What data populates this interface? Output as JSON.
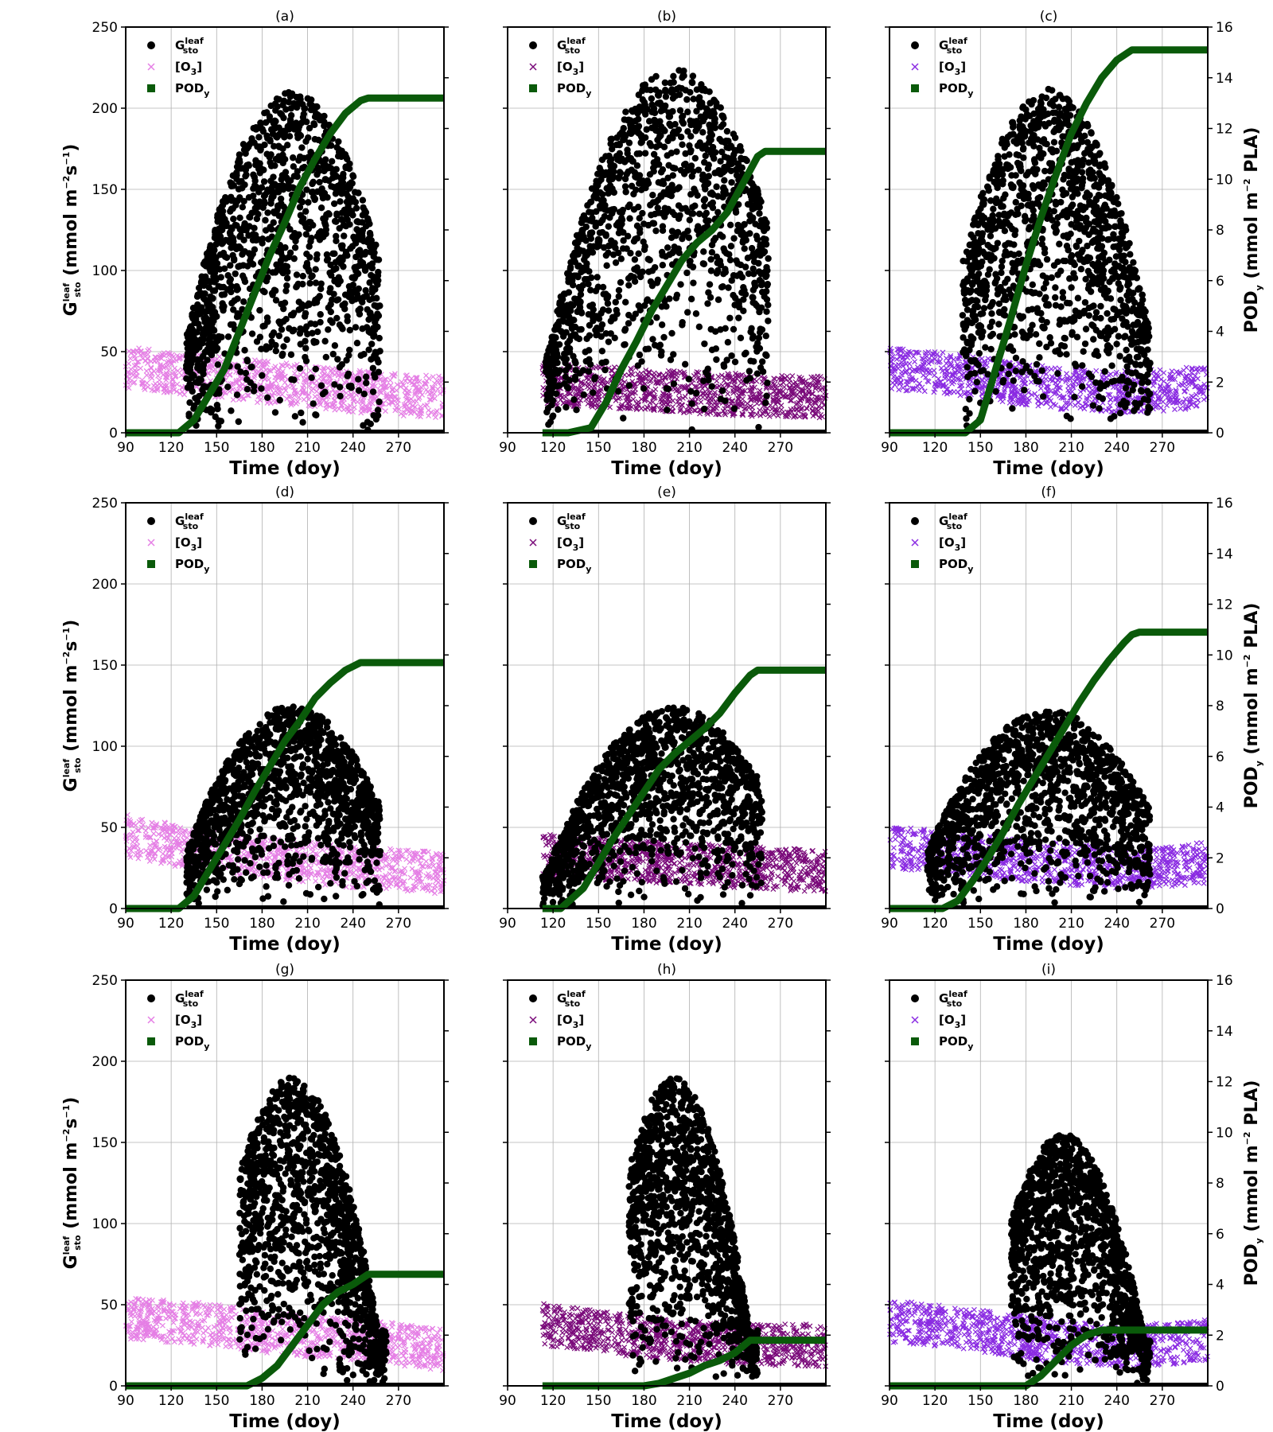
{
  "chart_data": {
    "type": "scatter",
    "legend_placement": "upper-left",
    "grid": true,
    "xlabel": "Time (doy)",
    "ylabel_left": {
      "base": "G",
      "sup": "leaf",
      "sub": "sto",
      "unit": " (mmol m",
      "unit_sup1": "−2",
      "unit_mid": "s",
      "unit_sup2": "−1",
      "unit_end": ")"
    },
    "ylabel_right": {
      "base": "POD",
      "sub": "y",
      "unit": " (mmol m",
      "unit_sup": "−2",
      "unit_end": " PLA)"
    },
    "xlim": [
      90,
      300
    ],
    "ylim_left": [
      0,
      250
    ],
    "ylim_right": [
      0,
      16
    ],
    "x_ticks": [
      90,
      120,
      150,
      180,
      210,
      240,
      270
    ],
    "y_ticks_left": [
      0,
      50,
      100,
      150,
      200,
      250
    ],
    "y_ticks_right": [
      0,
      2,
      4,
      6,
      8,
      10,
      12,
      14,
      16
    ],
    "legend": [
      {
        "key": "gsto",
        "base": "G",
        "sup": "leaf",
        "sub": "sto",
        "marker": "circle"
      },
      {
        "key": "o3",
        "base": "[O",
        "sub": "3",
        "end": "]",
        "marker": "x"
      },
      {
        "key": "pod",
        "base": "POD",
        "sub": "y",
        "marker": "square"
      }
    ],
    "colors": {
      "gsto": "#000000",
      "pod": "#0a5a0a",
      "o3_col1": "#e57fe5",
      "o3_col2": "#7a0a7a",
      "o3_col3": "#8a2be2"
    },
    "panels": [
      {
        "title": "(a)",
        "o3_color": "#e57fe5",
        "gsto": {
          "x_start": 130,
          "x_end": 258,
          "peak": 210,
          "peak_doy": 200
        },
        "o3": {
          "x_start": 90,
          "x_end": 300,
          "level": [
            40,
            35,
            30,
            25,
            22
          ]
        },
        "pod": {
          "x": [
            90,
            125,
            135,
            145,
            155,
            165,
            175,
            185,
            195,
            205,
            215,
            225,
            235,
            245,
            250,
            255,
            300
          ],
          "y": [
            0,
            0,
            0.5,
            1.5,
            2.5,
            4,
            5.5,
            7,
            8.3,
            9.7,
            10.8,
            11.8,
            12.6,
            13.1,
            13.2,
            13.2,
            13.2
          ]
        }
      },
      {
        "title": "(b)",
        "o3_color": "#7a0a7a",
        "gsto": {
          "x_start": 115,
          "x_end": 262,
          "peak": 225,
          "peak_doy": 200
        },
        "o3": {
          "x_start": 113,
          "x_end": 300,
          "level": [
            30,
            28,
            25,
            23,
            22
          ]
        },
        "pod": {
          "x": [
            113,
            130,
            145,
            155,
            165,
            175,
            185,
            195,
            205,
            215,
            225,
            235,
            245,
            255,
            260,
            300
          ],
          "y": [
            0,
            0,
            0.2,
            1.2,
            2.5,
            3.6,
            4.8,
            5.8,
            6.8,
            7.5,
            8.0,
            8.7,
            9.8,
            10.9,
            11.1,
            11.1
          ]
        }
      },
      {
        "title": "(c)",
        "o3_color": "#8a2be2",
        "gsto": {
          "x_start": 138,
          "x_end": 262,
          "peak": 212,
          "peak_doy": 195
        },
        "o3": {
          "x_start": 90,
          "x_end": 300,
          "level": [
            40,
            35,
            28,
            25,
            28
          ]
        },
        "pod": {
          "x": [
            90,
            140,
            150,
            160,
            170,
            180,
            190,
            200,
            210,
            220,
            230,
            240,
            250,
            255,
            300
          ],
          "y": [
            0,
            0,
            0.5,
            2.5,
            4.5,
            6.6,
            8.5,
            10.2,
            11.8,
            13.0,
            14.0,
            14.7,
            15.1,
            15.1,
            15.1
          ]
        }
      },
      {
        "title": "(d)",
        "o3_color": "#e57fe5",
        "gsto": {
          "x_start": 130,
          "x_end": 258,
          "peak": 125,
          "peak_doy": 200
        },
        "o3": {
          "x_start": 90,
          "x_end": 300,
          "level": [
            45,
            35,
            30,
            25,
            22
          ]
        },
        "pod": {
          "x": [
            90,
            125,
            135,
            145,
            155,
            165,
            175,
            185,
            195,
            205,
            215,
            225,
            235,
            245,
            250,
            255,
            300
          ],
          "y": [
            0,
            0,
            0.5,
            1.5,
            2.5,
            3.5,
            4.6,
            5.6,
            6.6,
            7.4,
            8.3,
            8.9,
            9.4,
            9.7,
            9.7,
            9.7,
            9.7
          ]
        }
      },
      {
        "title": "(e)",
        "o3_color": "#7a0a7a",
        "gsto": {
          "x_start": 113,
          "x_end": 258,
          "peak": 124,
          "peak_doy": 200
        },
        "o3": {
          "x_start": 113,
          "x_end": 300,
          "level": [
            33,
            30,
            28,
            25,
            23
          ]
        },
        "pod": {
          "x": [
            113,
            125,
            140,
            150,
            160,
            170,
            180,
            190,
            200,
            210,
            220,
            230,
            240,
            250,
            255,
            300
          ],
          "y": [
            0,
            0,
            0.8,
            1.8,
            2.8,
            3.7,
            4.6,
            5.5,
            6.1,
            6.6,
            7.1,
            7.7,
            8.5,
            9.2,
            9.4,
            9.4
          ]
        }
      },
      {
        "title": "(f)",
        "o3_color": "#8a2be2",
        "gsto": {
          "x_start": 115,
          "x_end": 262,
          "peak": 122,
          "peak_doy": 195
        },
        "o3": {
          "x_start": 90,
          "x_end": 300,
          "level": [
            38,
            33,
            28,
            25,
            28
          ]
        },
        "pod": {
          "x": [
            90,
            125,
            135,
            145,
            155,
            165,
            175,
            185,
            195,
            205,
            215,
            225,
            235,
            245,
            250,
            255,
            300
          ],
          "y": [
            0,
            0,
            0.3,
            1.1,
            2.0,
            3.0,
            4.1,
            5.1,
            6.1,
            7.1,
            8.1,
            9.0,
            9.8,
            10.5,
            10.8,
            10.9,
            10.9
          ]
        }
      },
      {
        "title": "(g)",
        "o3_color": "#e57fe5",
        "gsto": {
          "x_start": 165,
          "x_end": 262,
          "peak": 190,
          "peak_doy": 200
        },
        "o3": {
          "x_start": 90,
          "x_end": 300,
          "level": [
            42,
            38,
            32,
            28,
            22
          ]
        },
        "pod": {
          "x": [
            90,
            170,
            180,
            190,
            200,
            210,
            220,
            230,
            240,
            250,
            255,
            300
          ],
          "y": [
            0,
            0,
            0.3,
            0.8,
            1.6,
            2.4,
            3.2,
            3.7,
            4.0,
            4.4,
            4.4,
            4.4
          ]
        }
      },
      {
        "title": "(h)",
        "o3_color": "#7a0a7a",
        "gsto": {
          "x_start": 170,
          "x_end": 255,
          "peak": 190,
          "peak_doy": 200
        },
        "o3": {
          "x_start": 113,
          "x_end": 300,
          "level": [
            38,
            32,
            28,
            25,
            25
          ]
        },
        "pod": {
          "x": [
            113,
            180,
            190,
            200,
            210,
            220,
            230,
            240,
            250,
            260,
            300
          ],
          "y": [
            0,
            0,
            0.1,
            0.3,
            0.5,
            0.8,
            1.0,
            1.3,
            1.8,
            1.8,
            1.8
          ]
        }
      },
      {
        "title": "(i)",
        "o3_color": "#8a2be2",
        "gsto": {
          "x_start": 170,
          "x_end": 262,
          "peak": 155,
          "peak_doy": 205
        },
        "o3": {
          "x_start": 90,
          "x_end": 300,
          "level": [
            40,
            35,
            28,
            24,
            28
          ]
        },
        "pod": {
          "x": [
            90,
            180,
            190,
            200,
            210,
            220,
            230,
            240,
            250,
            300
          ],
          "y": [
            0,
            0,
            0.4,
            1.0,
            1.6,
            2.0,
            2.2,
            2.2,
            2.2,
            2.2
          ]
        }
      }
    ]
  }
}
